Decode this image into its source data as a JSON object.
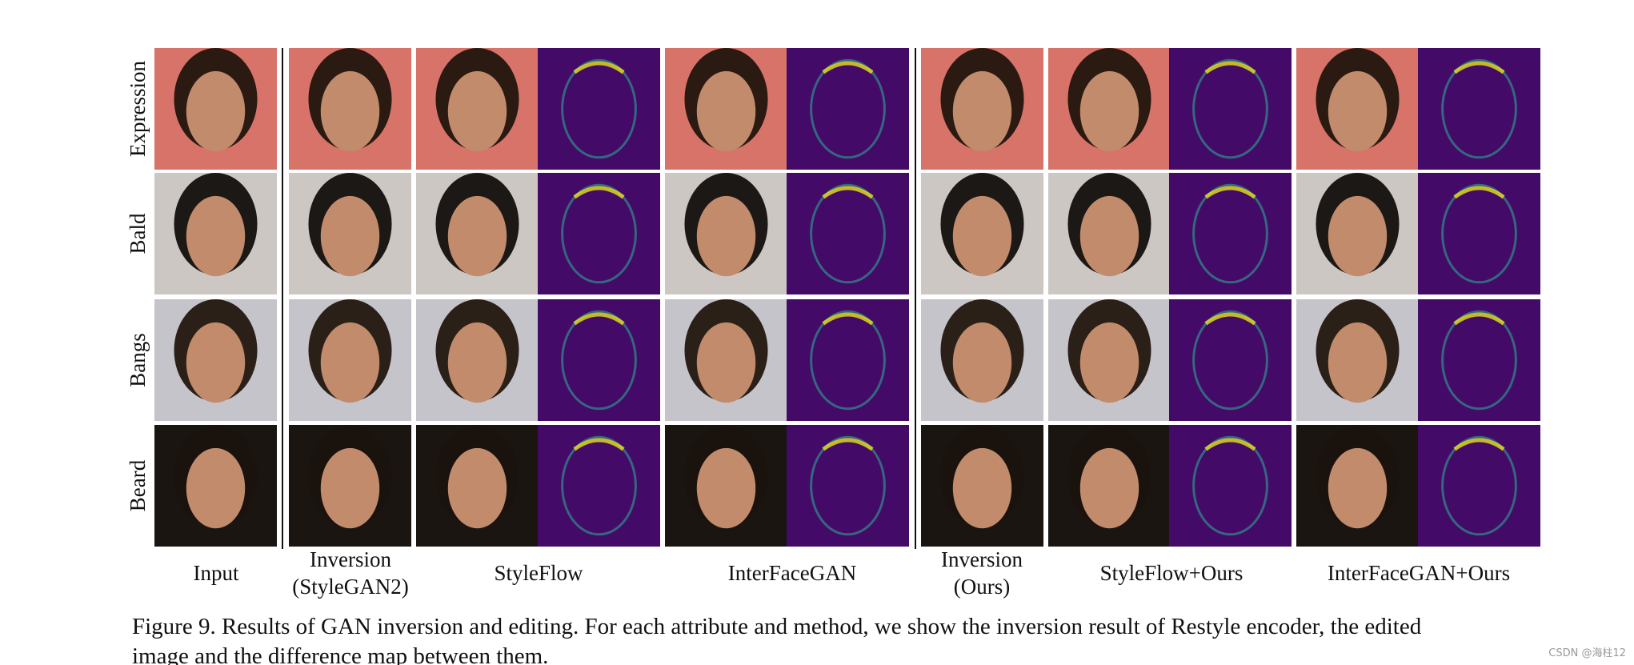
{
  "figure": {
    "row_labels": [
      "Expression",
      "Bald",
      "Bangs",
      "Beard"
    ],
    "column_labels": [
      [
        "Input"
      ],
      [
        "Inversion",
        "(StyleGAN2)"
      ],
      [
        "StyleFlow"
      ],
      [
        "InterFaceGAN"
      ],
      [
        "Inversion",
        "(Ours)"
      ],
      [
        "StyleFlow+Ours"
      ],
      [
        "InterFaceGAN+Ours"
      ]
    ],
    "caption": [
      "Figure 9. Results of GAN inversion and editing. For each attribute and method, we show the inversion result of Restyle encoder, the edited",
      "image and the difference map between them."
    ],
    "watermark": "CSDN @海柱12"
  }
}
